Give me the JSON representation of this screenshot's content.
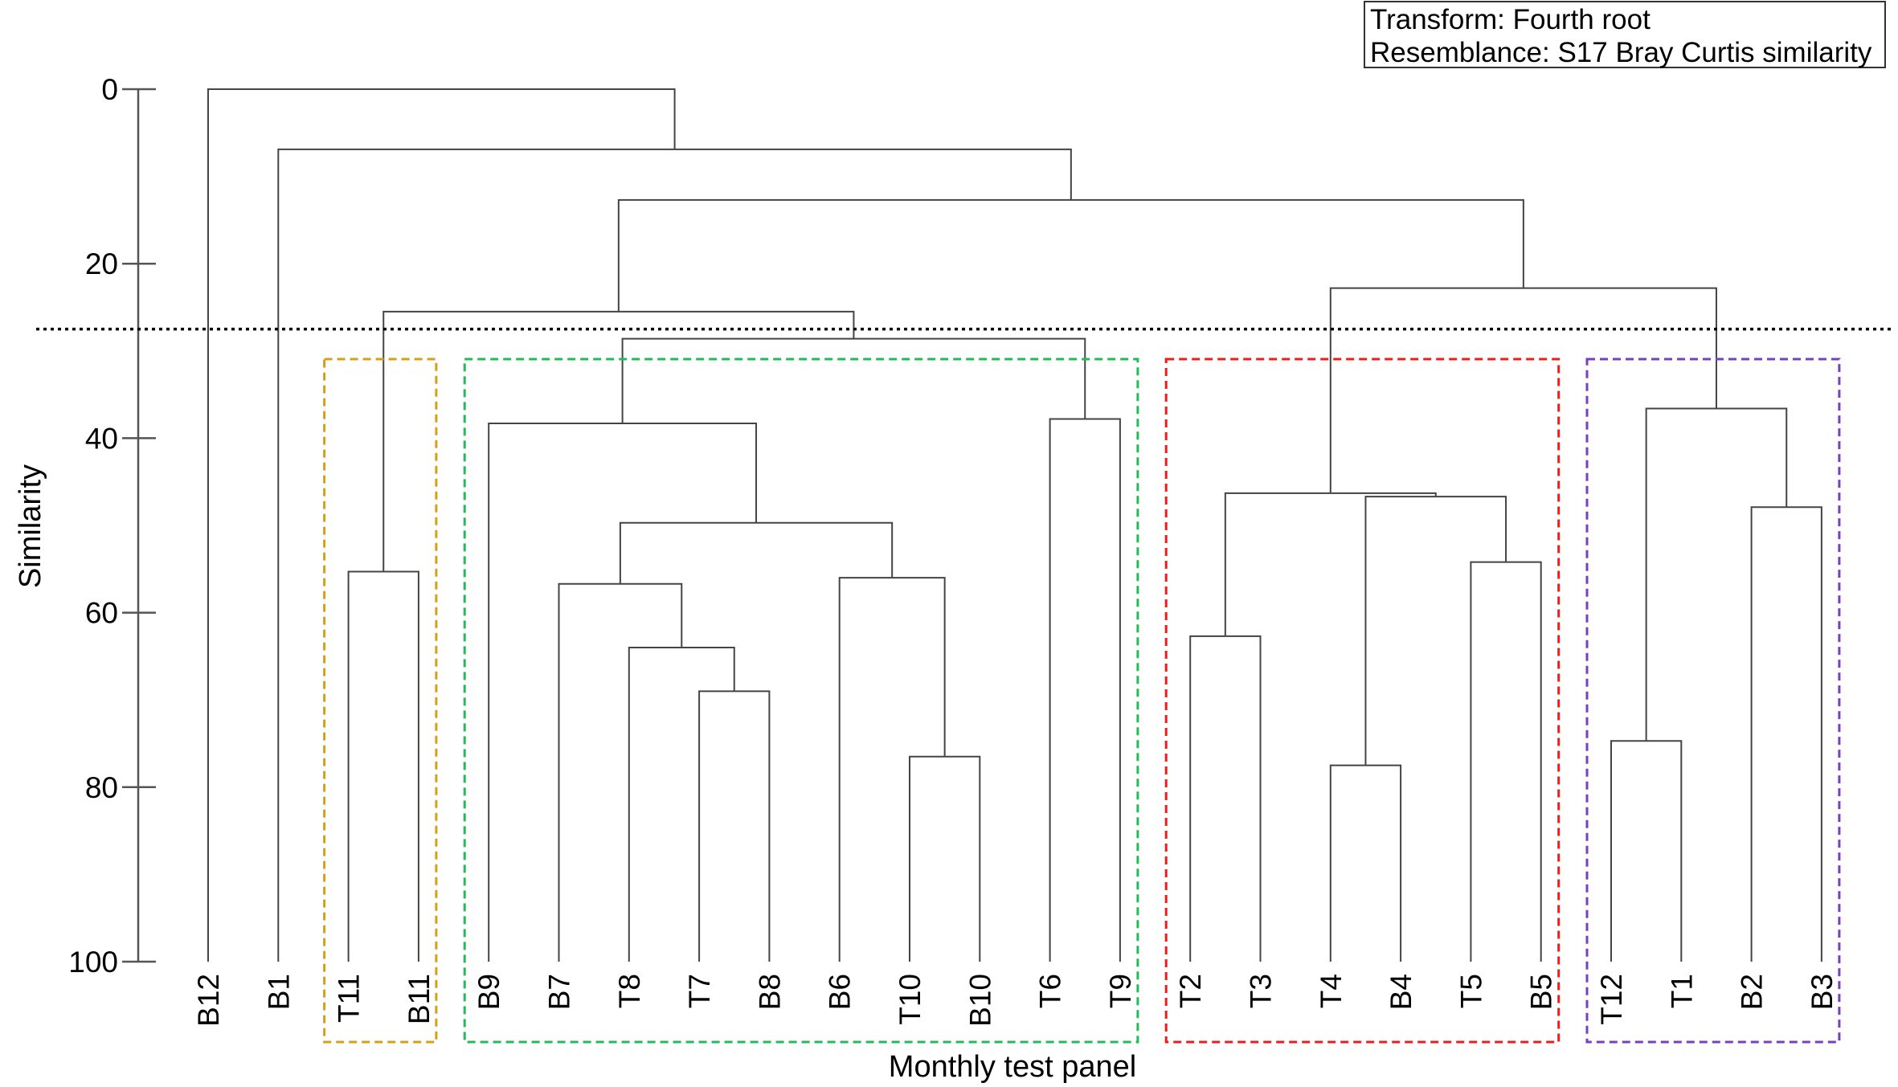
{
  "legend": {
    "transform": "Transform: Fourth root",
    "resemblance": "Resemblance: S17 Bray Curtis similarity"
  },
  "chart_data": {
    "type": "dendrogram",
    "title": "",
    "xlabel": "Monthly test panel",
    "ylabel": "Similarity",
    "ylim": [
      0,
      100
    ],
    "y_ticks": [
      0,
      20,
      40,
      60,
      80,
      100
    ],
    "cut_similarity": 27.5,
    "leaves": [
      "B12",
      "B1",
      "T11",
      "B11",
      "B9",
      "B7",
      "T8",
      "T7",
      "B8",
      "B6",
      "T10",
      "B10",
      "T6",
      "T9",
      "T2",
      "T3",
      "T4",
      "B4",
      "T5",
      "B5",
      "T12",
      "T1",
      "B2",
      "B3"
    ],
    "merges": [
      {
        "id": "n1",
        "left": "T11",
        "right": "B11",
        "similarity": 55.3
      },
      {
        "id": "n2",
        "left": "T7",
        "right": "B8",
        "similarity": 69.0
      },
      {
        "id": "n3",
        "left": "T8",
        "right": "n2",
        "similarity": 64.0
      },
      {
        "id": "n4",
        "left": "B7",
        "right": "n3",
        "similarity": 56.7
      },
      {
        "id": "n5",
        "left": "T10",
        "right": "B10",
        "similarity": 76.5
      },
      {
        "id": "n6",
        "left": "B6",
        "right": "n5",
        "similarity": 56.0
      },
      {
        "id": "n7",
        "left": "n4",
        "right": "n6",
        "similarity": 49.7
      },
      {
        "id": "n8",
        "left": "B9",
        "right": "n7",
        "similarity": 38.3
      },
      {
        "id": "n9",
        "left": "T6",
        "right": "T9",
        "similarity": 37.8
      },
      {
        "id": "n10",
        "left": "n8",
        "right": "n9",
        "similarity": 28.6
      },
      {
        "id": "n11",
        "left": "n1",
        "right": "n10",
        "similarity": 25.5
      },
      {
        "id": "n12",
        "left": "T2",
        "right": "T3",
        "similarity": 62.7
      },
      {
        "id": "n13",
        "left": "T4",
        "right": "B4",
        "similarity": 77.5
      },
      {
        "id": "n14",
        "left": "T5",
        "right": "B5",
        "similarity": 54.2
      },
      {
        "id": "n15",
        "left": "n13",
        "right": "n14",
        "similarity": 46.7
      },
      {
        "id": "n16",
        "left": "n12",
        "right": "n15",
        "similarity": 46.3
      },
      {
        "id": "n17",
        "left": "T12",
        "right": "T1",
        "similarity": 74.7
      },
      {
        "id": "n18",
        "left": "B2",
        "right": "B3",
        "similarity": 47.9
      },
      {
        "id": "n19",
        "left": "n17",
        "right": "n18",
        "similarity": 36.6
      },
      {
        "id": "n20",
        "left": "n16",
        "right": "n19",
        "similarity": 22.8
      },
      {
        "id": "n21",
        "left": "n11",
        "right": "n20",
        "similarity": 12.7
      },
      {
        "id": "n22",
        "left": "B1",
        "right": "n21",
        "similarity": 6.9
      },
      {
        "id": "n23",
        "left": "B12",
        "right": "n22",
        "similarity": 0.0
      }
    ],
    "groups": [
      {
        "name": "group-orange",
        "first": "T11",
        "last": "B11",
        "color": "#d4a017"
      },
      {
        "name": "group-green",
        "first": "B9",
        "last": "T9",
        "color": "#22bb55"
      },
      {
        "name": "group-red",
        "first": "T2",
        "last": "B5",
        "color": "#ee1c1c"
      },
      {
        "name": "group-purple",
        "first": "T12",
        "last": "B3",
        "color": "#7a3fc0"
      }
    ]
  }
}
